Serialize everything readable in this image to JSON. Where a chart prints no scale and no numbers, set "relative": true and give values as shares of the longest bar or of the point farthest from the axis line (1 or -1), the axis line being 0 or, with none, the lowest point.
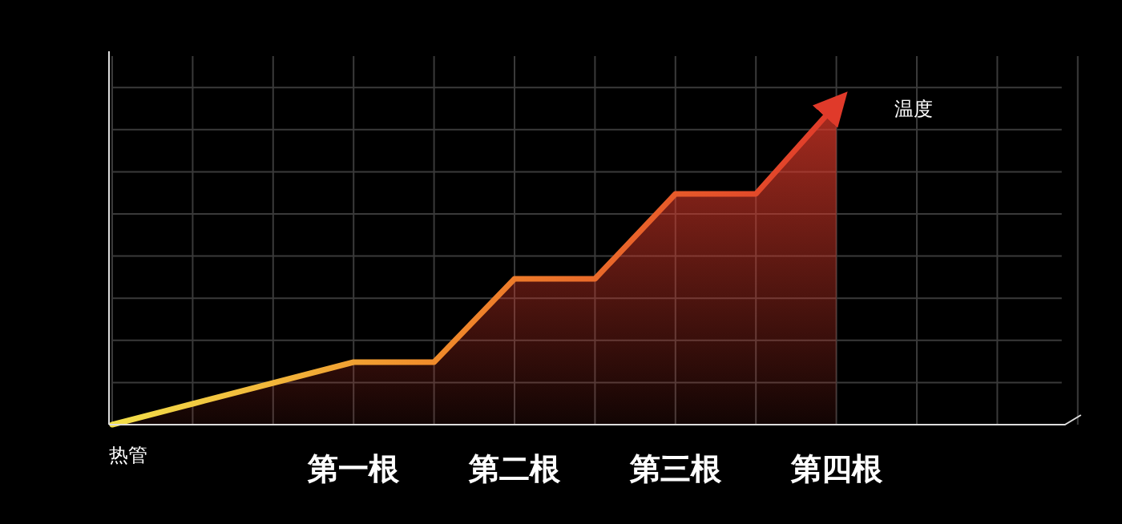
{
  "chart_data": {
    "type": "area",
    "relative": true,
    "xlabel": "热管",
    "ylabel": "温度",
    "grid": true,
    "categories": [
      null,
      null,
      null,
      "第一根",
      null,
      "第二根",
      null,
      "第三根",
      null,
      "第四根",
      null,
      null
    ],
    "series": [
      {
        "color": "#e03a2a",
        "values": [
          0,
          0.065,
          0.13,
          0.195,
          0.195,
          0.455,
          0.455,
          0.72,
          0.72,
          1,
          null,
          null
        ]
      }
    ]
  }
}
